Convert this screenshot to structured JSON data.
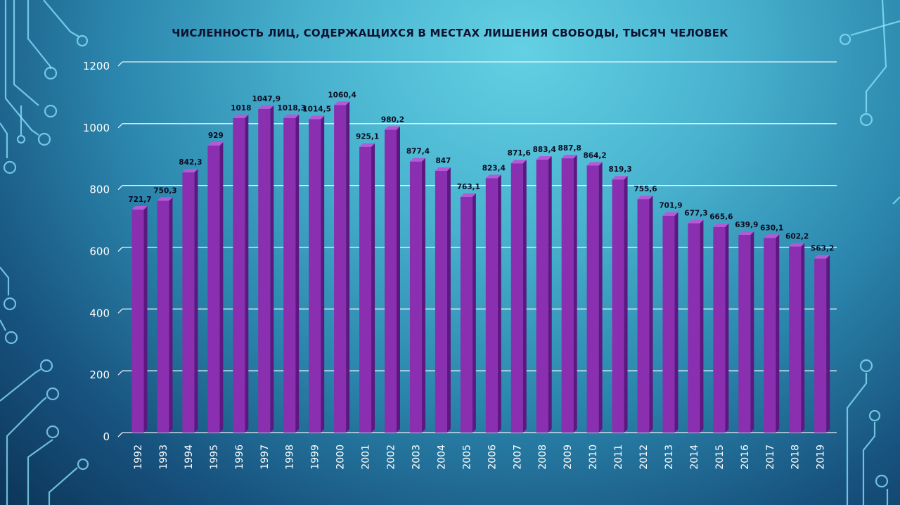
{
  "colors": {
    "bar_front": "#8a2fb0",
    "bar_side": "#5d1780",
    "bar_top": "#b45ad6",
    "gridline": "#ffffff",
    "title": "#0c1230",
    "axis_text": "#ffffff",
    "decor_lines": "#8fe6ff"
  },
  "chart_data": {
    "type": "bar",
    "title": "ЧИСЛЕННОСТЬ ЛИЦ, СОДЕРЖАЩИХСЯ В МЕСТАХ ЛИШЕНИЯ СВОБОДЫ, ТЫСЯЧ ЧЕЛОВЕК",
    "xlabel": "",
    "ylabel": "",
    "ylim": [
      0,
      1200
    ],
    "yticks": [
      "0",
      "200",
      "400",
      "600",
      "800",
      "1000",
      "1200"
    ],
    "grid": true,
    "style": "3d-columns",
    "categories": [
      "1992",
      "1993",
      "1994",
      "1995",
      "1996",
      "1997",
      "1998",
      "1999",
      "2000",
      "2001",
      "2002",
      "2003",
      "2004",
      "2005",
      "2006",
      "2007",
      "2008",
      "2009",
      "2010",
      "2011",
      "2012",
      "2013",
      "2014",
      "2015",
      "2016",
      "2017",
      "2018",
      "2019"
    ],
    "values": [
      721.7,
      750.3,
      842.3,
      929,
      1018,
      1047.9,
      1018.3,
      1014.5,
      1060.4,
      925.1,
      980.2,
      877.4,
      847,
      763.1,
      823.4,
      871.6,
      883.4,
      887.8,
      864.2,
      819.3,
      755.6,
      701.9,
      677.3,
      665.6,
      639.9,
      630.1,
      602.2,
      563.2
    ],
    "data_labels": [
      "721,7",
      "750,3",
      "842,3",
      "929",
      "1018",
      "1047,9",
      "1018,3",
      "1014,5",
      "1060,4",
      "925,1",
      "980,2",
      "877,4",
      "847",
      "763,1",
      "823,4",
      "871,6",
      "883,4",
      "887,8",
      "864,2",
      "819,3",
      "755,6",
      "701,9",
      "677,3",
      "665,6",
      "639,9",
      "630,1",
      "602,2",
      "563,2"
    ]
  }
}
